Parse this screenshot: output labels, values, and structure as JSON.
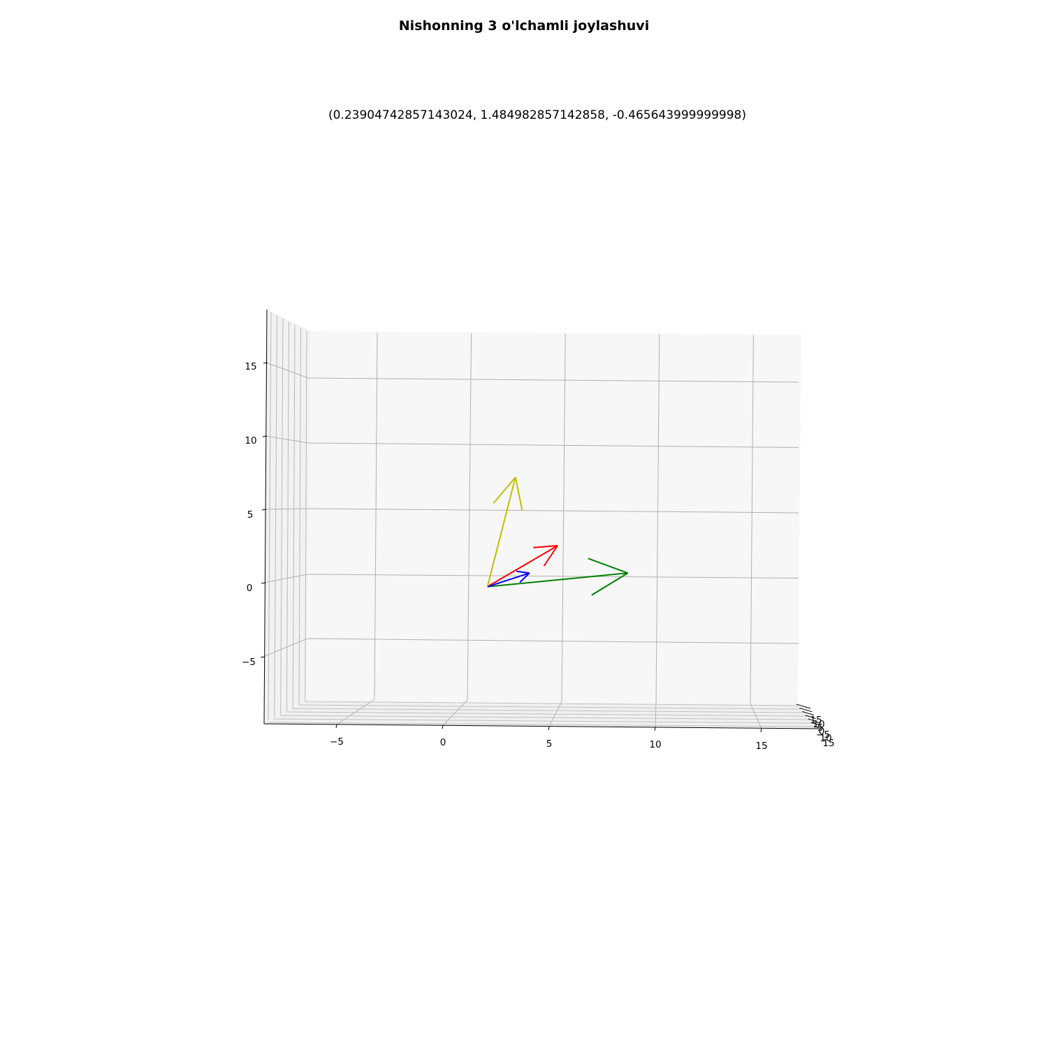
{
  "title": "Nishonning 3 o'lchamli joylashuvi",
  "subtitle": "(0.23904742857143024, 1.484982857142858, -0.465643999999998)",
  "chart_data": {
    "type": "quiver3d",
    "origin": [
      0,
      0,
      0
    ],
    "vectors": [
      {
        "color": "#ff0000",
        "components": [
          5,
          0,
          3
        ]
      },
      {
        "color": "#008000",
        "components": [
          10,
          0,
          1
        ]
      },
      {
        "color": "#0000ff",
        "components": [
          3,
          0,
          1
        ]
      },
      {
        "color": "#bfbf00",
        "components": [
          2,
          0,
          8
        ]
      }
    ],
    "x_ticks": [
      "−5",
      "0",
      "5",
      "10",
      "15"
    ],
    "z_ticks": [
      "15",
      "10",
      "5",
      "0",
      "−5"
    ],
    "y_ticks": [
      "15",
      "10",
      "5",
      "0",
      "−5",
      "10",
      "15"
    ],
    "xlim": [
      -8.5,
      17.5
    ],
    "zlim": [
      -9,
      18
    ],
    "grid": true
  }
}
